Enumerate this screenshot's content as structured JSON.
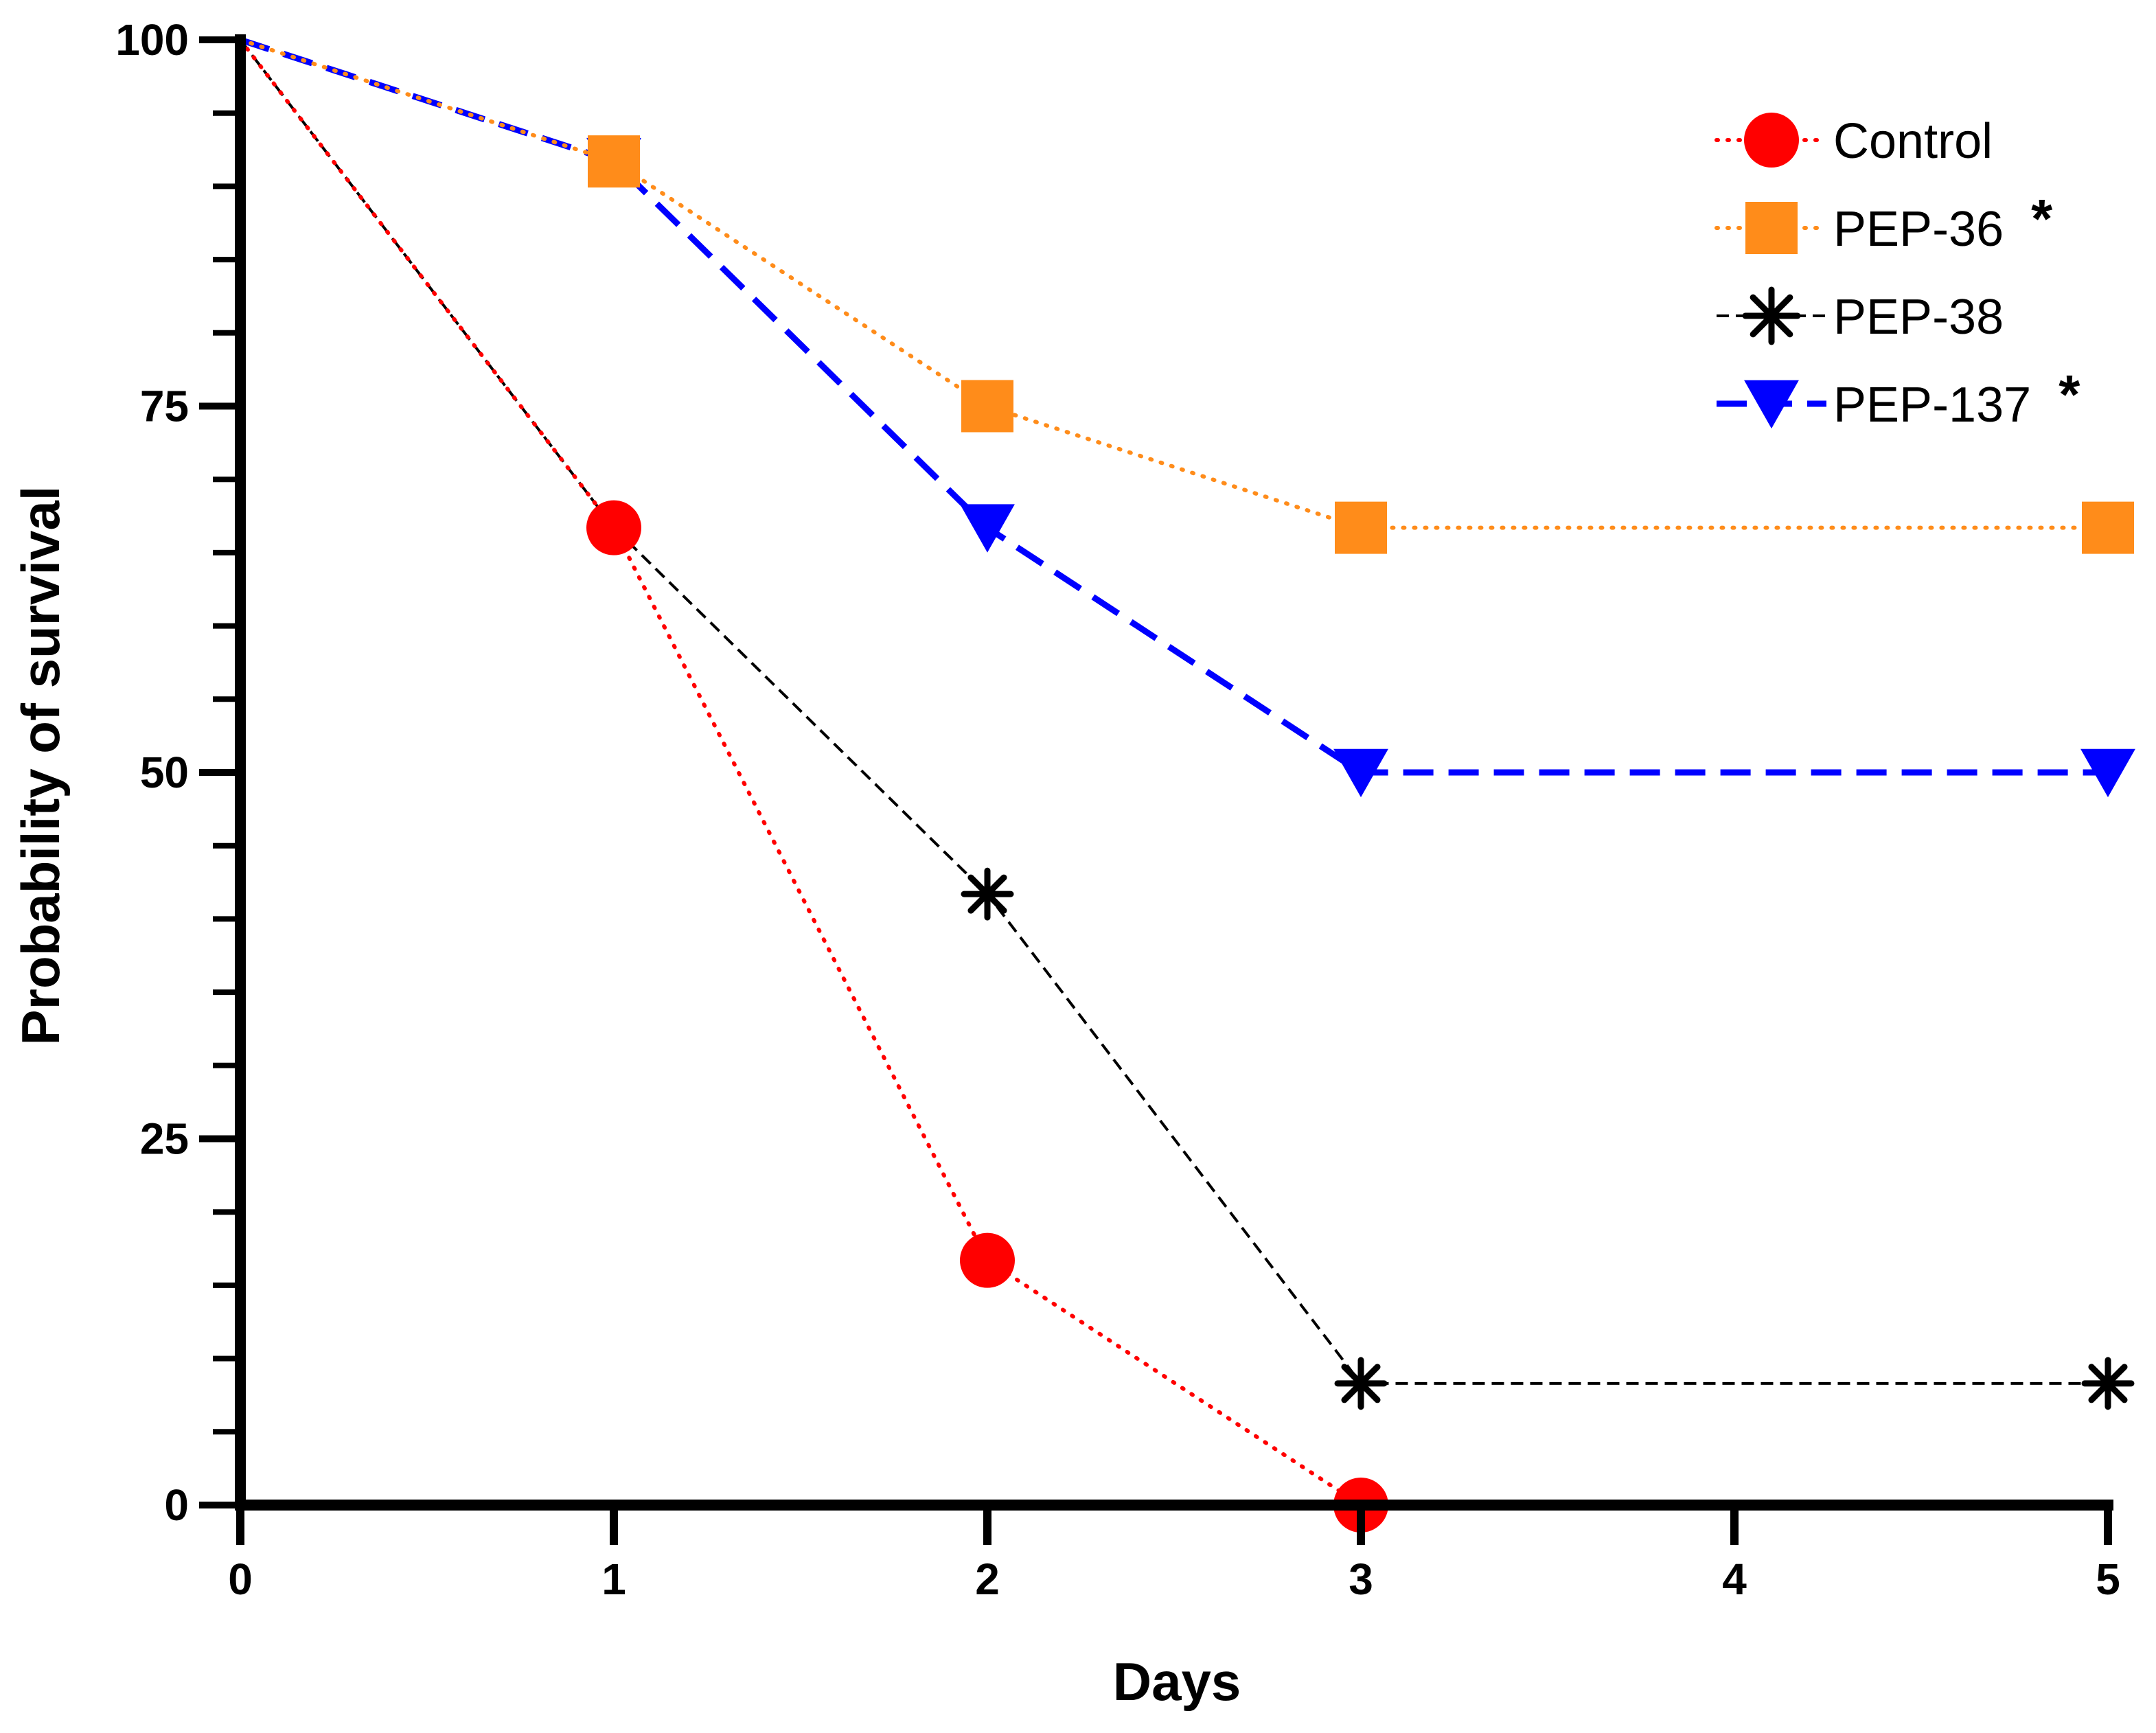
{
  "chart_data": {
    "type": "line",
    "title": "",
    "xlabel": "Days",
    "ylabel": "Probability of survival",
    "xlim": [
      0,
      5
    ],
    "ylim": [
      0,
      100
    ],
    "xticks": [
      0,
      1,
      2,
      3,
      4,
      5
    ],
    "xtick_labels": [
      "0",
      "1",
      "2",
      "3",
      "4",
      "5"
    ],
    "yticks": [
      0,
      25,
      50,
      75,
      100
    ],
    "ytick_labels": [
      "0",
      "25",
      "50",
      "75",
      "100"
    ],
    "y_minor_step": 5,
    "grid": false,
    "legend_position": "top-right",
    "series": [
      {
        "name": "Control",
        "significance": "",
        "color": "#ff0000",
        "marker": "circle",
        "line_style": "dotted",
        "x": [
          0,
          1,
          2,
          3
        ],
        "y": [
          100,
          66.7,
          16.7,
          0
        ]
      },
      {
        "name": "PEP-36",
        "significance": "*",
        "color": "#ff8c1a",
        "marker": "square",
        "line_style": "dotted",
        "x": [
          0,
          1,
          2,
          3,
          5
        ],
        "y": [
          100,
          91.7,
          75,
          66.7,
          66.7
        ]
      },
      {
        "name": "PEP-38",
        "significance": "",
        "color": "#000000",
        "marker": "asterisk",
        "line_style": "dashed-thin",
        "x": [
          0,
          1,
          2,
          3,
          5
        ],
        "y": [
          100,
          66.7,
          41.7,
          8.3,
          8.3
        ]
      },
      {
        "name": "PEP-137",
        "significance": "*",
        "color": "#0000ff",
        "marker": "triangle-down",
        "line_style": "dashed-thick",
        "x": [
          0,
          1,
          2,
          3,
          5
        ],
        "y": [
          100,
          91.7,
          66.7,
          50,
          50
        ]
      }
    ]
  }
}
